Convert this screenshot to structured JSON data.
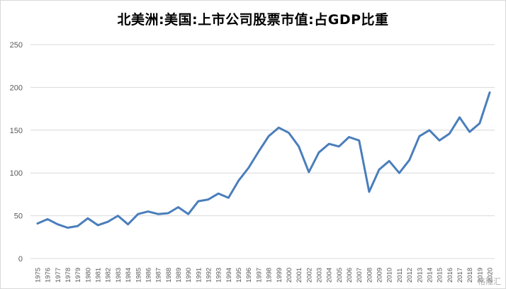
{
  "chart_data": {
    "type": "line",
    "title": "北美洲:美国:上市公司股票市值:占GDP比重",
    "xlabel": "",
    "ylabel": "",
    "ylim": [
      0,
      250
    ],
    "yticks": [
      0,
      50,
      100,
      150,
      200,
      250
    ],
    "grid": true,
    "legend": "none",
    "categories": [
      "1975",
      "1976",
      "1977",
      "1978",
      "1979",
      "1980",
      "1981",
      "1982",
      "1983",
      "1984",
      "1985",
      "1986",
      "1987",
      "1988",
      "1989",
      "1990",
      "1991",
      "1992",
      "1993",
      "1994",
      "1995",
      "1996",
      "1997",
      "1998",
      "1999",
      "2000",
      "2001",
      "2002",
      "2003",
      "2004",
      "2005",
      "2006",
      "2007",
      "2008",
      "2009",
      "2010",
      "2011",
      "2012",
      "2013",
      "2014",
      "2015",
      "2016",
      "2017",
      "2018",
      "2019",
      "2020"
    ],
    "series": [
      {
        "color": "#4a7ebb",
        "values": [
          41,
          46,
          40,
          36,
          38,
          47,
          39,
          43,
          50,
          40,
          52,
          55,
          52,
          53,
          60,
          52,
          67,
          69,
          76,
          71,
          91,
          106,
          125,
          143,
          153,
          147,
          131,
          101,
          124,
          134,
          131,
          142,
          138,
          78,
          104,
          114,
          100,
          115,
          143,
          150,
          138,
          146,
          165,
          148,
          158,
          194
        ]
      }
    ]
  },
  "watermark": "格隆汇"
}
